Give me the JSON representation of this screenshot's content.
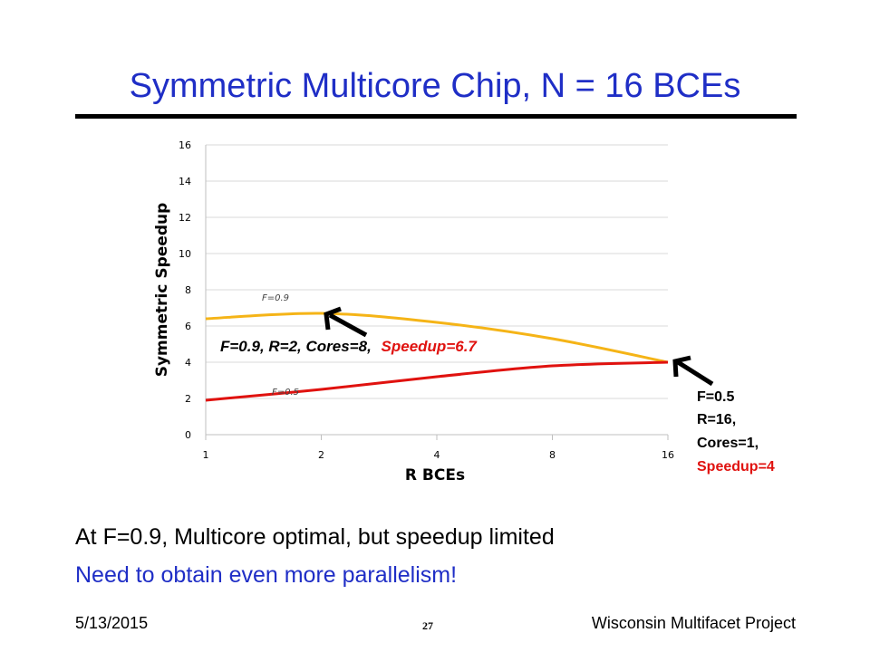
{
  "slide": {
    "title": "Symmetric Multicore Chip, N = 16 BCEs",
    "bullets": [
      "At F=0.9, Multicore optimal, but speedup limited",
      "Need to obtain even more parallelism!"
    ],
    "footer": {
      "date": "5/13/2015",
      "page": "27",
      "project": "Wisconsin Multifacet Project"
    }
  },
  "chart_data": {
    "type": "line",
    "title": "",
    "xlabel": "R BCEs",
    "ylabel": "Symmetric Speedup",
    "x_scale": "log2",
    "x": [
      1,
      2,
      4,
      8,
      16
    ],
    "x_tick_labels": [
      "1",
      "2",
      "4",
      "8",
      "16"
    ],
    "ylim": [
      0,
      16
    ],
    "y_ticks": [
      0,
      2,
      4,
      6,
      8,
      10,
      12,
      14,
      16
    ],
    "grid": true,
    "series": [
      {
        "name": "F=0.9",
        "color": "#f5b417",
        "values": [
          6.4,
          6.7,
          6.2,
          5.3,
          4.0
        ]
      },
      {
        "name": "F=0.5",
        "color": "#e0120f",
        "values": [
          1.9,
          2.5,
          3.2,
          3.8,
          4.0
        ]
      }
    ],
    "annotations": [
      {
        "id": "ann-09",
        "parts": [
          {
            "text": "F=0.9, R=2, Cores=8,",
            "color": "#000000"
          },
          {
            "text": "Speedup=6.7",
            "color": "#e0120f"
          }
        ],
        "point": {
          "x": 2,
          "y": 6.7
        }
      },
      {
        "id": "ann-05",
        "lines": [
          {
            "text": "F=0.5",
            "color": "#000000"
          },
          {
            "text": "R=16,",
            "color": "#000000"
          },
          {
            "text": "Cores=1,",
            "color": "#000000"
          },
          {
            "text": "Speedup=4",
            "color": "#e0120f"
          }
        ],
        "point": {
          "x": 16,
          "y": 4
        }
      }
    ]
  }
}
